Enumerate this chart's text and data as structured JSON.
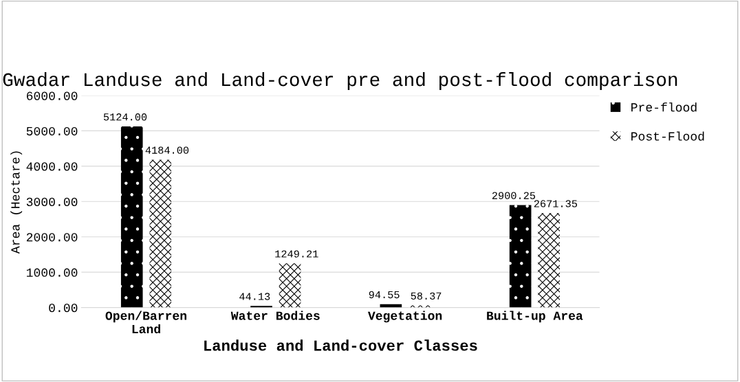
{
  "chart_data": {
    "type": "bar",
    "title": "Gwadar Landuse and Land-cover pre and post-flood comparison",
    "xlabel": "Landuse and Land-cover Classes",
    "ylabel": "Area (Hectare)",
    "categories": [
      "Open/Barren Land",
      "Water Bodies",
      "Vegetation",
      "Built-up Area"
    ],
    "series": [
      {
        "name": "Pre-flood",
        "color": "#000000",
        "values": [
          5124,
          44.13,
          94.55,
          2900.25
        ],
        "value_labels": [
          "5124.00",
          "44.13",
          "94.55",
          "2900.25"
        ]
      },
      {
        "name": "Post-Flood",
        "color": "#ffffff",
        "values": [
          4184,
          1249.21,
          58.37,
          2671.35
        ],
        "value_labels": [
          "4184.00",
          "1249.21",
          "58.37",
          "2671.35"
        ]
      }
    ],
    "ylim": [
      0,
      6000
    ],
    "yticks": [
      {
        "value": 0,
        "label": "0.00"
      },
      {
        "value": 1000,
        "label": "1000.00"
      },
      {
        "value": 2000,
        "label": "2000.00"
      },
      {
        "value": 3000,
        "label": "3000.00"
      },
      {
        "value": 4000,
        "label": "4000.00"
      },
      {
        "value": 5000,
        "label": "5000.00"
      },
      {
        "value": 6000,
        "label": "6000.00"
      }
    ],
    "grid": "y",
    "legend": "top right"
  }
}
